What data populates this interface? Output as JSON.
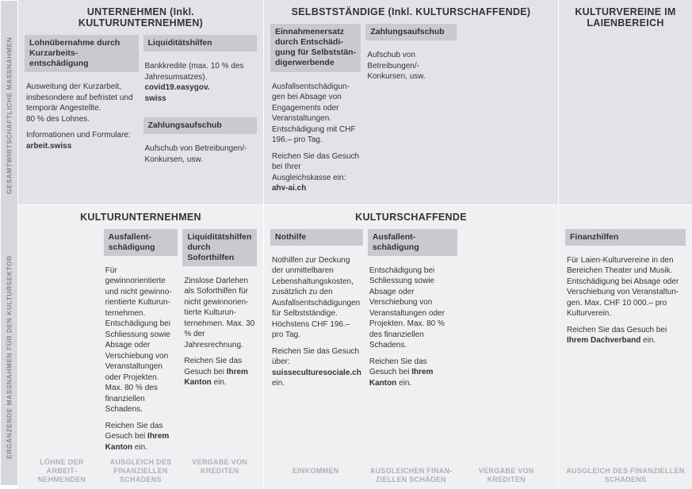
{
  "sideLabels": {
    "top": "GESAMTWIRTSCHAFTLICHE MASSNAHMEN",
    "bottom": "ERGÄNZENDE MASSNAHMEN FÜR DEN KULTURSEKTOR"
  },
  "colors": {
    "topBg": "#e1e3e6",
    "bottomBg": "#eef0f2",
    "boxTitleBg": "#c8cacd",
    "sideBg": "#d5d7da",
    "mutedText": "#aeb0b3"
  },
  "topRow": {
    "unternehmen": {
      "header": "UNTERNEHMEN (Inkl. KULTURUNTERNEHMEN)",
      "boxes": [
        {
          "title": "Lohnübernahme durch Kurzarbeits­entschädigung",
          "body": "Ausweitung der Kurzarbeit, insbeson­dere auf befristet und temporär Angestellte.\n80 % des Lohnes.\n\nInformationen und Formulare:\n<b>arbeit.swiss</b>"
        },
        {
          "title": "Liquiditätshilfen",
          "body": "Bankkredite (max. 10 % des Jahresumsatzes).\n<b>covid19.easygov.\nswiss</b>",
          "title2": "Zahlungsaufschub",
          "body2": "Aufschub von Betreibungen/-Konkursen, usw."
        }
      ]
    },
    "selbststaendige": {
      "header": "SELBSTSTÄNDIGE (Inkl. KULTURSCHAFFENDE)",
      "boxes": [
        {
          "title": "Einnahmenersatz durch Entschädi­gung für Selbststän­digerwerbende",
          "body": "Ausfallsentschädigun­gen bei Absage von Engagements oder Veranstaltungen. Entschädigung mit CHF 196.– pro Tag.\n\nReichen Sie das Gesuch bei Ihrer Ausgleichskasse ein:\n<b>ahv-ai.ch</b>"
        },
        {
          "title": "Zahlungsaufschub",
          "body": "Aufschub von Betreibungen/-Konkursen, usw."
        }
      ]
    },
    "vereine": {
      "header": "KULTURVEREINE IM LAIENBEREICH"
    }
  },
  "bottomRow": {
    "unternehmen": {
      "header": "KULTURUNTERNEHMEN",
      "boxes": [
        {
          "title": "Ausfallent­schädigung",
          "body": "Für gewinnorientierte und nicht gewinno­rientierte Kulturun­ternehmen. Entschä­digung bei Schlies­sung sowie Absage oder Verschiebung von Veranstaltungen oder Projekten. Max. 80 % des finan­ziellen Schadens.\n\nReichen Sie das Gesuch bei <b>Ihrem Kanton</b> ein."
        },
        {
          "title": "Liquiditätshilfen durch Soforthilfen",
          "body": "Zinslose Darlehen als Soforthilfen für nicht gewinnorien­tierte Kulturun­ternehmen. Max. 30 % der Jahresrechnung.\n\nReichen Sie das Gesuch bei <b>Ihrem Kanton</b> ein."
        }
      ],
      "footers": [
        "LÖHNE DER ARBEIT­NEHMENDEN",
        "AUSGLEICH DES FINAN­ZIELLEN SCHADENS",
        "VERGABE VON KREDITEN"
      ]
    },
    "schaffende": {
      "header": "KULTURSCHAFFENDE",
      "boxes": [
        {
          "title": "Nothilfe",
          "body": "Nothilfen zur Deckung der unmittelbaren Lebenshaltungs­kosten, zusätzlich zu den Ausfalls­entschädigungen für Selbstständige. Höchstens CHF 196.– pro Tag.\n\nReichen Sie das Gesuch über:\n<b>suisseculturesociale.ch</b> ein."
        },
        {
          "title": "Ausfallent­schädigung",
          "body": "Entschädigung bei Schliessung sowie Absage oder Verschiebung von Veranstaltungen oder Projekten. Max. 80 % des finanziellen Schadens.\n\nReichen Sie das Gesuch bei <b>Ihrem Kanton</b> ein."
        }
      ],
      "footers": [
        "EINKOMMEN",
        "AUSGLEICHEN FINAN­ZIELLEN SCHÄDEN",
        "VERGABE VON KREDITEN"
      ]
    },
    "vereine": {
      "boxes": [
        {
          "title": "Finanzhilfen",
          "body": "Für Laien-Kulturvereine in den Bereichen Theater und Musik. Entschädigung bei Absage oder Verschie­bung von Veranstaltun­gen. Max. CHF 10 000.– pro Kulturverein.\n\nReichen Sie das Gesuch bei <b>Ihrem Dachverband</b> ein."
        }
      ],
      "footers": [
        "AUSGLEICH DES FINAN­ZIELLEN SCHADENS"
      ]
    }
  }
}
